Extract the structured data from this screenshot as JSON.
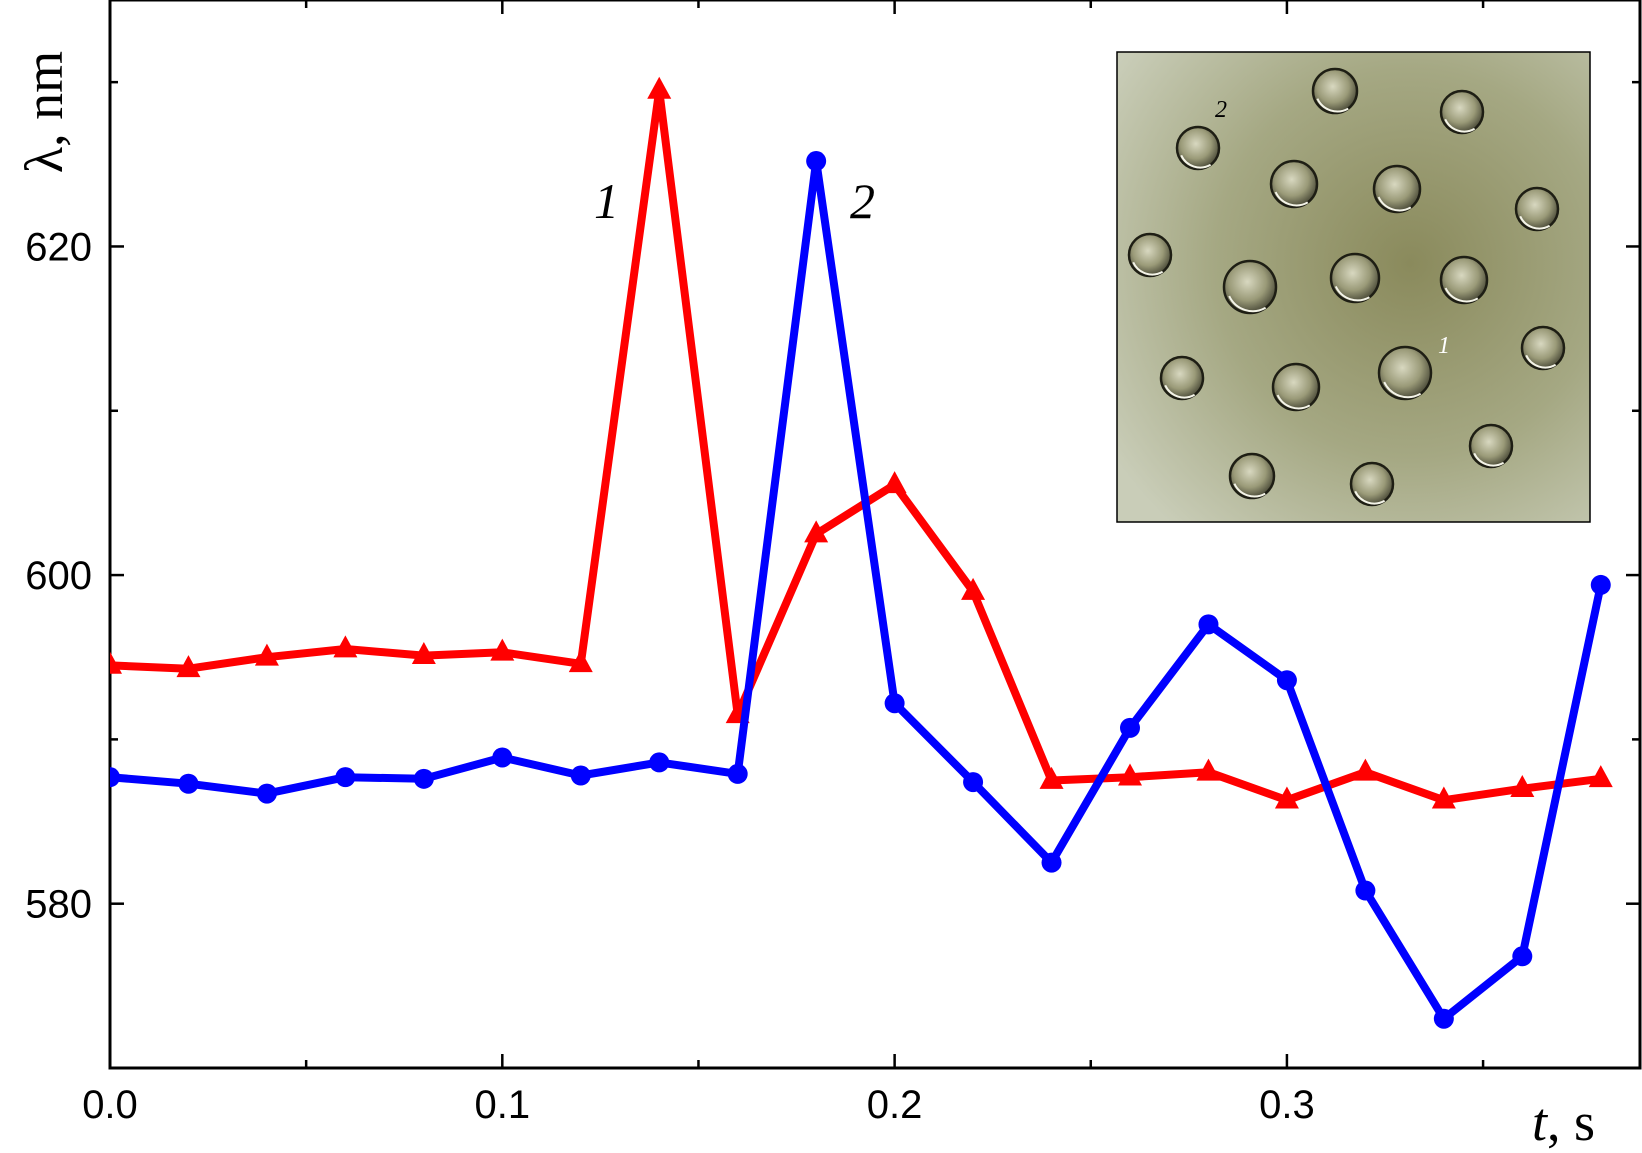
{
  "chart_data": {
    "type": "line",
    "xlabel": {
      "var": "t",
      "unit": ", s"
    },
    "ylabel": "λ, nm",
    "xlim": [
      0.0,
      0.39
    ],
    "ylim": [
      570,
      635
    ],
    "xticks": [
      0.0,
      0.1,
      0.2,
      0.3
    ],
    "xtick_labels": [
      "0.0",
      "0.1",
      "0.2",
      "0.3"
    ],
    "yticks": [
      580,
      600,
      620
    ],
    "ytick_labels": [
      "580",
      "600",
      "620"
    ],
    "grid": false,
    "legend": "none",
    "series": [
      {
        "label": "1",
        "color": "#ff0000",
        "marker": "triangle",
        "x": [
          0.0,
          0.02,
          0.04,
          0.06,
          0.08,
          0.1,
          0.12,
          0.14,
          0.16,
          0.18,
          0.2,
          0.22,
          0.24,
          0.26,
          0.28,
          0.3,
          0.32,
          0.34,
          0.36,
          0.38
        ],
        "y": [
          594.5,
          594.3,
          595.0,
          595.5,
          595.1,
          595.3,
          594.6,
          629.5,
          591.5,
          602.5,
          605.5,
          599.0,
          587.5,
          587.7,
          588.0,
          586.3,
          588.0,
          586.3,
          587.0,
          587.6
        ]
      },
      {
        "label": "2",
        "color": "#0000ff",
        "marker": "circle",
        "x": [
          0.0,
          0.02,
          0.04,
          0.06,
          0.08,
          0.1,
          0.12,
          0.14,
          0.16,
          0.18,
          0.2,
          0.22,
          0.24,
          0.26,
          0.28,
          0.3,
          0.32,
          0.34,
          0.36,
          0.38
        ],
        "y": [
          587.7,
          587.3,
          586.7,
          587.7,
          587.6,
          588.9,
          587.8,
          588.6,
          587.9,
          625.2,
          592.2,
          587.4,
          582.5,
          590.7,
          597.0,
          593.6,
          580.8,
          573.0,
          576.8,
          599.4
        ]
      }
    ],
    "inset": {
      "type": "micrograph",
      "labels": [
        "1",
        "2"
      ]
    }
  }
}
